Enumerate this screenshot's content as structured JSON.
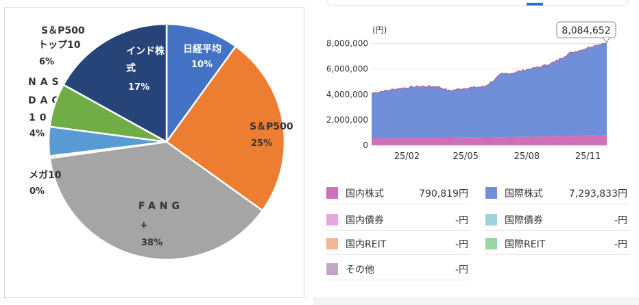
{
  "chart_data": [
    {
      "type": "pie",
      "slices": [
        {
          "label": "日経平均",
          "value": 10,
          "pct_label": "10%",
          "color": "#4472c4"
        },
        {
          "label": "S＆P500",
          "value": 25,
          "pct_label": "25%",
          "color": "#ed7d31"
        },
        {
          "label": "FANG+",
          "value": 38,
          "pct_label": "38%",
          "color": "#a5a5a5"
        },
        {
          "label": "メガ10",
          "value": 0.3,
          "pct_label": "0%",
          "color": "#ffc000"
        },
        {
          "label": "NASDAQ100",
          "value": 4,
          "pct_label": "4%",
          "color": "#5b9bd5"
        },
        {
          "label": "S＆P500トップ10",
          "value": 6,
          "pct_label": "6%",
          "color": "#70ad47"
        },
        {
          "label": "インド株式",
          "value": 17,
          "pct_label": "17%",
          "color": "#264478"
        }
      ]
    },
    {
      "type": "area",
      "unit": "(円)",
      "callout": "8,084,652",
      "x_ticks": [
        "25/02",
        "25/05",
        "25/08",
        "25/11"
      ],
      "y_ticks": [
        "8,000,000",
        "6,000,000",
        "4,000,000",
        "2,000,000",
        "0"
      ],
      "ylim": [
        0,
        8300000
      ],
      "series": [
        {
          "name": "国内株式",
          "color": "#cf6fb8",
          "points": [
            [
              0,
              560000
            ],
            [
              0.1,
              580000
            ],
            [
              0.3,
              590000
            ],
            [
              0.5,
              620000
            ],
            [
              0.7,
              680000
            ],
            [
              0.85,
              740000
            ],
            [
              1,
              790819
            ]
          ]
        },
        {
          "name": "国際株式",
          "color": "#6f8fd8",
          "points": [
            [
              0,
              3550000
            ],
            [
              0.05,
              3700000
            ],
            [
              0.12,
              3900000
            ],
            [
              0.2,
              4050000
            ],
            [
              0.28,
              4050000
            ],
            [
              0.33,
              3700000
            ],
            [
              0.4,
              3900000
            ],
            [
              0.48,
              4000000
            ],
            [
              0.52,
              4500000
            ],
            [
              0.55,
              4950000
            ],
            [
              0.6,
              5050000
            ],
            [
              0.66,
              5300000
            ],
            [
              0.72,
              5500000
            ],
            [
              0.78,
              5850000
            ],
            [
              0.84,
              6500000
            ],
            [
              0.9,
              6800000
            ],
            [
              0.95,
              7100000
            ],
            [
              1,
              7293833
            ]
          ]
        }
      ]
    }
  ],
  "legend": [
    {
      "name": "国内株式",
      "value": "790,819円",
      "color": "#cf6fb8"
    },
    {
      "name": "国際株式",
      "value": "7,293,833円",
      "color": "#6f8fd8"
    },
    {
      "name": "国内債券",
      "value": "-円",
      "color": "#e6a6e0"
    },
    {
      "name": "国際債券",
      "value": "-円",
      "color": "#9fd0dc"
    },
    {
      "name": "国内REIT",
      "value": "-円",
      "color": "#f2b896"
    },
    {
      "name": "国際REIT",
      "value": "-円",
      "color": "#98d8a0"
    },
    {
      "name": "その他",
      "value": "-円",
      "color": "#c2a6c6"
    }
  ]
}
